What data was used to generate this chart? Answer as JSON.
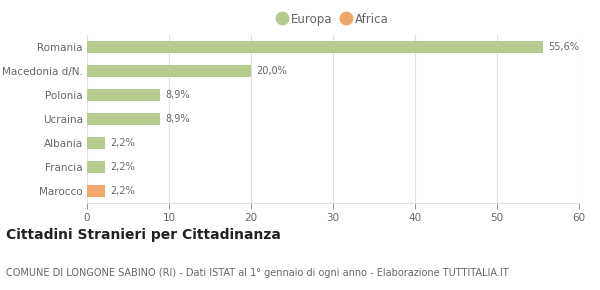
{
  "categories": [
    "Romania",
    "Macedonia d/N.",
    "Polonia",
    "Ucraina",
    "Albania",
    "Francia",
    "Marocco"
  ],
  "values": [
    55.6,
    20.0,
    8.9,
    8.9,
    2.2,
    2.2,
    2.2
  ],
  "labels": [
    "55,6%",
    "20,0%",
    "8,9%",
    "8,9%",
    "2,2%",
    "2,2%",
    "2,2%"
  ],
  "colors": [
    "#b5cc8e",
    "#b5cc8e",
    "#b5cc8e",
    "#b5cc8e",
    "#b5cc8e",
    "#b5cc8e",
    "#f0a868"
  ],
  "legend_labels": [
    "Europa",
    "Africa"
  ],
  "legend_colors": [
    "#b5cc8e",
    "#f0a868"
  ],
  "xlim": [
    0,
    60
  ],
  "xticks": [
    0,
    10,
    20,
    30,
    40,
    50,
    60
  ],
  "title": "Cittadini Stranieri per Cittadinanza",
  "subtitle": "COMUNE DI LONGONE SABINO (RI) - Dati ISTAT al 1° gennaio di ogni anno - Elaborazione TUTTITALIA.IT",
  "background_color": "#ffffff",
  "bar_height": 0.5,
  "title_fontsize": 10,
  "subtitle_fontsize": 7,
  "label_fontsize": 7,
  "tick_fontsize": 7.5,
  "legend_fontsize": 8.5,
  "grid_color": "#e0e0e0",
  "text_color": "#666666",
  "title_color": "#222222"
}
